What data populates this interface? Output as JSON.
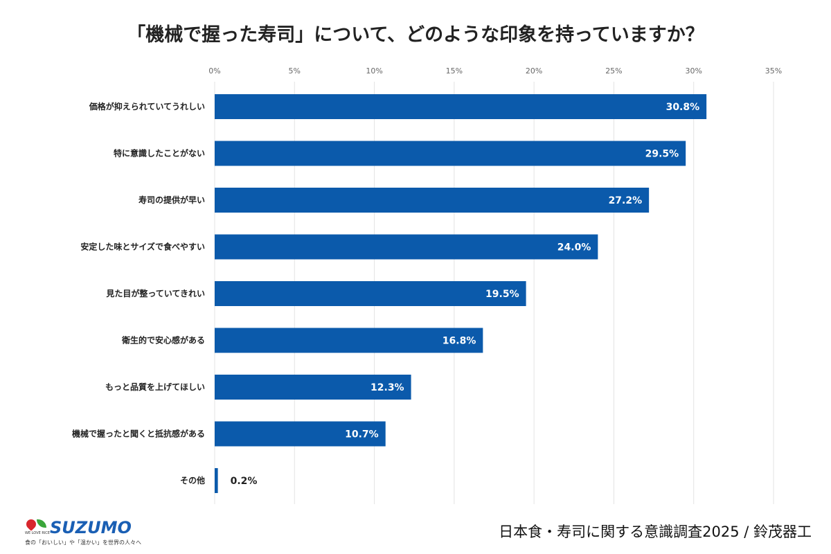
{
  "chart_data": {
    "type": "bar",
    "orientation": "horizontal",
    "title": "「機械で握った寿司」について、どのような印象を持っていますか？",
    "categories": [
      "価格が抑えられていてうれしい",
      "特に意識したことがない",
      "寿司の提供が早い",
      "安定した味とサイズで食べやすい",
      "見た目が整っていてきれい",
      "衛生的で安心感がある",
      "もっと品質を上げてほしい",
      "機械で握ったと聞くと抵抗感がある",
      "その他"
    ],
    "values": [
      30.8,
      29.5,
      27.2,
      24.0,
      19.5,
      16.8,
      12.3,
      10.7,
      0.2
    ],
    "data_labels": [
      "30.8%",
      "29.5%",
      "27.2%",
      "24.0%",
      "19.5%",
      "16.8%",
      "12.3%",
      "10.7%",
      "0.2%"
    ],
    "xlim": [
      0,
      35
    ],
    "x_ticks": [
      "0%",
      "5%",
      "10%",
      "15%",
      "20%",
      "25%",
      "30%",
      "35%"
    ],
    "x_axis_position": "top",
    "grid": true,
    "bar_color": "#0b5aab"
  },
  "footer": {
    "source": "日本食・寿司に関する意識調査2025 / 鈴茂器工",
    "logo_brand": "SUZUMO",
    "logo_subtext": "WE LOVE RICE",
    "logo_tagline": "食の「おいしい」や「温かい」を世界の人々へ"
  }
}
